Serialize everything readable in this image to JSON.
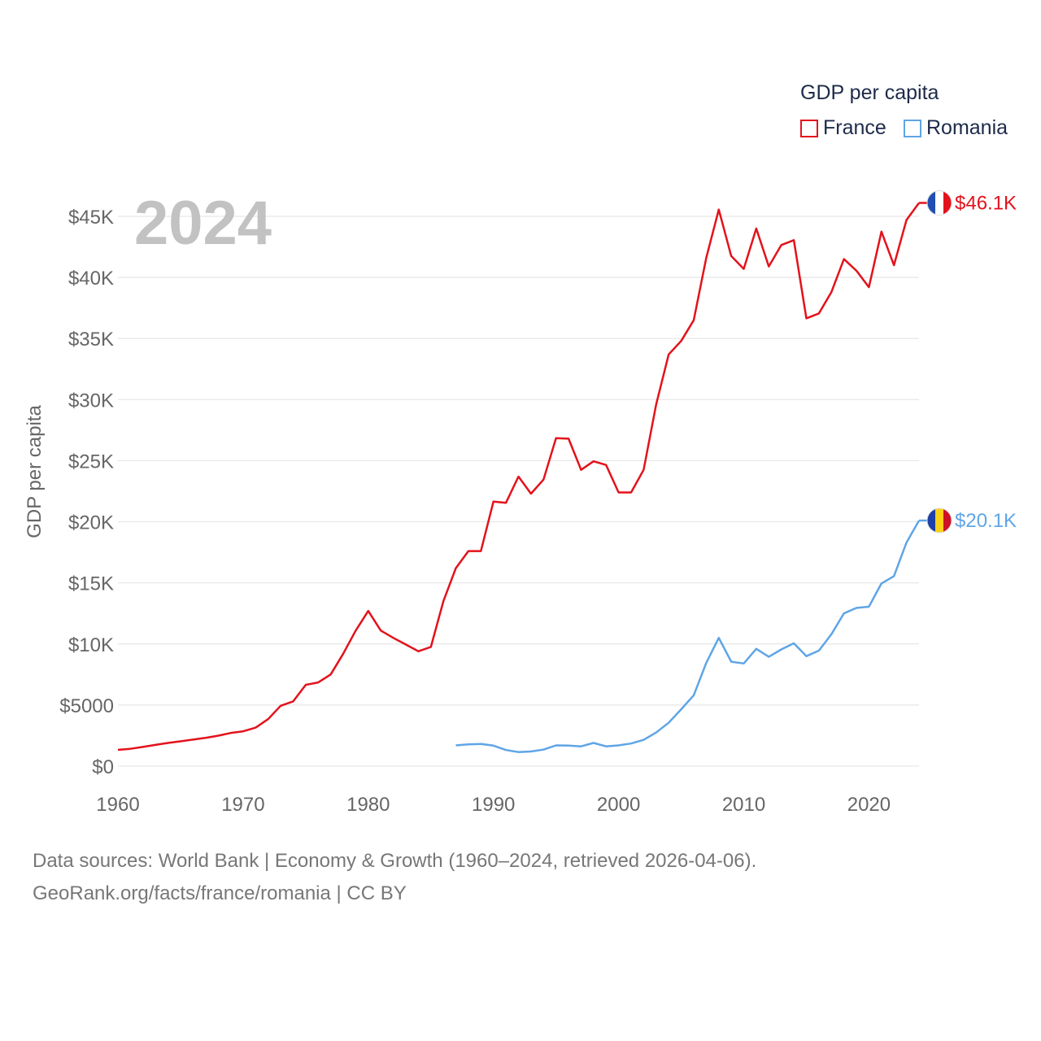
{
  "colors": {
    "france": "#e3121b",
    "romania": "#5fa5e6",
    "grid": "#e6e6e6",
    "axis_text": "#666666",
    "year_label": "#c2c2c2",
    "legend_text": "#1d2b4a"
  },
  "legend": {
    "title": "GDP per capita",
    "items": [
      "France",
      "Romania"
    ]
  },
  "year_label": "2024",
  "footer": {
    "line1": "Data sources: World Bank | Economy & Growth (1960–2024, retrieved 2026-04-06).",
    "line2": "GeoRank.org/facts/france/romania | CC BY"
  },
  "chart_data": {
    "type": "line",
    "title": "",
    "xlabel": "",
    "ylabel": "GDP per capita",
    "xlim": [
      1960,
      2024
    ],
    "ylim": [
      0,
      45000
    ],
    "x_ticks": [
      1960,
      1970,
      1980,
      1990,
      2000,
      2010,
      2020
    ],
    "x_tick_labels": [
      "1960",
      "1970",
      "1980",
      "1990",
      "2000",
      "2010",
      "2020"
    ],
    "y_ticks": [
      0,
      5000,
      10000,
      15000,
      20000,
      25000,
      30000,
      35000,
      40000,
      45000
    ],
    "y_tick_labels": [
      "$0",
      "$5000",
      "$10K",
      "$15K",
      "$20K",
      "$25K",
      "$30K",
      "$35K",
      "$40K",
      "$45K"
    ],
    "grid": true,
    "legend_position": "top-right",
    "series": [
      {
        "name": "France",
        "color": "#e3121b",
        "end_label": "$46.1K",
        "x": [
          1960,
          1961,
          1962,
          1963,
          1964,
          1965,
          1966,
          1967,
          1968,
          1969,
          1970,
          1971,
          1972,
          1973,
          1974,
          1975,
          1976,
          1977,
          1978,
          1979,
          1980,
          1981,
          1982,
          1983,
          1984,
          1985,
          1986,
          1987,
          1988,
          1989,
          1990,
          1991,
          1992,
          1993,
          1994,
          1995,
          1996,
          1997,
          1998,
          1999,
          2000,
          2001,
          2002,
          2003,
          2004,
          2005,
          2006,
          2007,
          2008,
          2009,
          2010,
          2011,
          2012,
          2013,
          2014,
          2015,
          2016,
          2017,
          2018,
          2019,
          2020,
          2021,
          2022,
          2023,
          2024
        ],
        "values": [
          1330,
          1420,
          1570,
          1740,
          1900,
          2030,
          2170,
          2310,
          2490,
          2710,
          2850,
          3150,
          3850,
          4940,
          5300,
          6650,
          6850,
          7500,
          9200,
          11100,
          12700,
          11100,
          10500,
          9950,
          9400,
          9750,
          13500,
          16200,
          17600,
          17600,
          21650,
          21550,
          23700,
          22300,
          23450,
          26850,
          26800,
          24250,
          24950,
          24650,
          22400,
          22400,
          24250,
          29600,
          33700,
          34800,
          36500,
          41600,
          45550,
          41750,
          40700,
          44000,
          40900,
          42650,
          43050,
          36650,
          37050,
          38800,
          41500,
          40550,
          39200,
          43750,
          41000,
          44700,
          46100
        ]
      },
      {
        "name": "Romania",
        "color": "#5fa5e6",
        "end_label": "$20.1K",
        "x": [
          1987,
          1988,
          1989,
          1990,
          1991,
          1992,
          1993,
          1994,
          1995,
          1996,
          1997,
          1998,
          1999,
          2000,
          2001,
          2002,
          2003,
          2004,
          2005,
          2006,
          2007,
          2008,
          2009,
          2010,
          2011,
          2012,
          2013,
          2014,
          2015,
          2016,
          2017,
          2018,
          2019,
          2020,
          2021,
          2022,
          2023,
          2024
        ],
        "values": [
          1700,
          1780,
          1820,
          1680,
          1320,
          1150,
          1200,
          1350,
          1700,
          1680,
          1620,
          1900,
          1620,
          1700,
          1850,
          2150,
          2750,
          3550,
          4650,
          5800,
          8450,
          10500,
          8550,
          8400,
          9600,
          8950,
          9550,
          10050,
          9000,
          9450,
          10800,
          12500,
          12950,
          13050,
          14950,
          15550,
          18300,
          20100
        ]
      }
    ]
  }
}
